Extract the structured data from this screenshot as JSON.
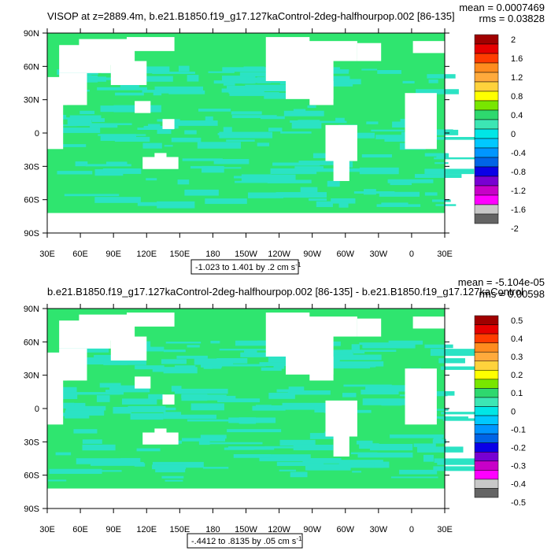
{
  "panels": [
    {
      "title": "VISOP at z=2889.4m, b.e21.B1850.f19_g17.127kaControl-2deg-halfhourpop.002 [86-135]",
      "stat_mean": "mean = 0.0007469",
      "stat_rms": "rms = 0.03828",
      "range_label": "-1.023 to 1.401 by .2 cm s",
      "range_exp": "-1",
      "colorbar_labels": [
        "2",
        "1.6",
        "1.2",
        "0.8",
        "0.4",
        "0",
        "-0.4",
        "-0.8",
        "-1.2",
        "-1.6",
        "-2"
      ]
    },
    {
      "title": "b.e21.B1850.f19_g17.127kaControl-2deg-halfhourpop.002 [86-135] - b.e21.B1850.f19_g17.127kaControl",
      "stat_mean": "mean = -5.104e-05",
      "stat_rms": "rms = 0.00598",
      "range_label": "-.4412 to .8135 by .05 cm s",
      "range_exp": "-1",
      "colorbar_labels": [
        "0.5",
        "0.4",
        "0.3",
        "0.2",
        "0.1",
        "0",
        "-0.1",
        "-0.2",
        "-0.3",
        "-0.4",
        "-0.5"
      ]
    }
  ],
  "lat_labels": [
    "90N",
    "60N",
    "30N",
    "0",
    "30S",
    "60S",
    "90S"
  ],
  "lon_labels": [
    "30E",
    "60E",
    "90E",
    "120E",
    "150E",
    "180",
    "150W",
    "120W",
    "90W",
    "60W",
    "30W",
    "0",
    "30E"
  ],
  "colors": {
    "colorbar": [
      "#a00000",
      "#e60000",
      "#ff3c00",
      "#ff8c1e",
      "#ffaa3c",
      "#ffd23c",
      "#ffff00",
      "#78e600",
      "#2ed86e",
      "#3ce6b4",
      "#00e6e6",
      "#00c8ff",
      "#0096ff",
      "#0064e6",
      "#0a00e6",
      "#7800d2",
      "#c800c8",
      "#ff00ff",
      "#c8c8c8",
      "#646464"
    ],
    "ocean_green": "#2fe56f",
    "ocean_cyan": "#2be3c4",
    "land": "#ffffff"
  },
  "chart_data": [
    {
      "type": "heatmap",
      "title": "VISOP at z=2889.4m, b.e21.B1850.f19_g17.127kaControl-2deg-halfhourpop.002 [86-135]",
      "x": [
        "30E",
        "60E",
        "90E",
        "120E",
        "150E",
        "180",
        "150W",
        "120W",
        "90W",
        "60W",
        "30W",
        "0",
        "30E"
      ],
      "y": [
        "90N",
        "60N",
        "30N",
        "0",
        "30S",
        "60S",
        "90S"
      ],
      "color_levels": [
        2,
        1.6,
        1.2,
        0.8,
        0.4,
        0,
        -0.4,
        -0.8,
        -1.2,
        -1.6,
        -2
      ],
      "mean": 0.0007469,
      "rms": 0.03828,
      "data_min": -1.023,
      "data_max": 1.401,
      "contour_interval": 0.2,
      "units": "cm s-1"
    },
    {
      "type": "heatmap",
      "title": "b.e21.B1850.f19_g17.127kaControl-2deg-halfhourpop.002 [86-135] - b.e21.B1850.f19_g17.127kaControl",
      "x": [
        "30E",
        "60E",
        "90E",
        "120E",
        "150E",
        "180",
        "150W",
        "120W",
        "90W",
        "60W",
        "30W",
        "0",
        "30E"
      ],
      "y": [
        "90N",
        "60N",
        "30N",
        "0",
        "30S",
        "60S",
        "90S"
      ],
      "color_levels": [
        0.5,
        0.4,
        0.3,
        0.2,
        0.1,
        0,
        -0.1,
        -0.2,
        -0.3,
        -0.4,
        -0.5
      ],
      "mean": -5.104e-05,
      "rms": 0.00598,
      "data_min": -0.4412,
      "data_max": 0.8135,
      "contour_interval": 0.05,
      "units": "cm s-1"
    }
  ]
}
